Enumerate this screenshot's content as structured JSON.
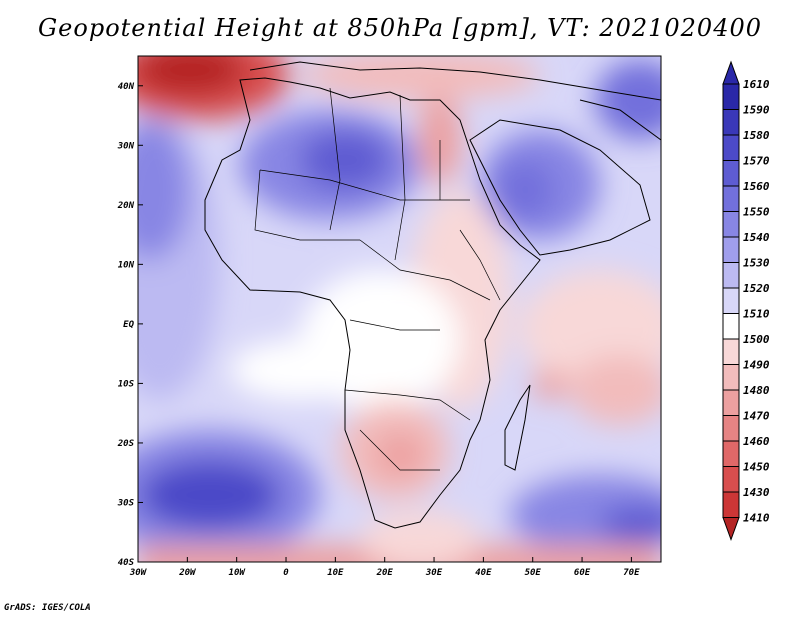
{
  "title": "Geopotential Height at 850hPa [gpm], VT: 2021020400",
  "footer": "GrADS: IGES/COLA",
  "map": {
    "variable": "Geopotential Height",
    "level": "850hPa",
    "units": "gpm",
    "valid_time": "2021020400",
    "lon_range": [
      -30,
      76
    ],
    "lat_range": [
      -40,
      45
    ],
    "lat_ticks": [
      {
        "value": 40,
        "label": "40N"
      },
      {
        "value": 30,
        "label": "30N"
      },
      {
        "value": 20,
        "label": "20N"
      },
      {
        "value": 10,
        "label": "10N"
      },
      {
        "value": 0,
        "label": "EQ"
      },
      {
        "value": -10,
        "label": "10S"
      },
      {
        "value": -20,
        "label": "20S"
      },
      {
        "value": -30,
        "label": "30S"
      },
      {
        "value": -40,
        "label": "40S"
      }
    ],
    "lon_ticks": [
      {
        "value": -30,
        "label": "30W"
      },
      {
        "value": -20,
        "label": "20W"
      },
      {
        "value": -10,
        "label": "10W"
      },
      {
        "value": 0,
        "label": "0"
      },
      {
        "value": 10,
        "label": "10E"
      },
      {
        "value": 20,
        "label": "20E"
      },
      {
        "value": 30,
        "label": "30E"
      },
      {
        "value": 40,
        "label": "40E"
      },
      {
        "value": 50,
        "label": "50E"
      },
      {
        "value": 60,
        "label": "60E"
      },
      {
        "value": 70,
        "label": "70E"
      }
    ]
  },
  "colorbar": {
    "labels_top_to_bottom": [
      "1610",
      "1590",
      "1580",
      "1570",
      "1560",
      "1550",
      "1540",
      "1530",
      "1520",
      "1510",
      "1500",
      "1490",
      "1480",
      "1470",
      "1460",
      "1450",
      "1430",
      "1410"
    ],
    "colors_top_to_bottom": [
      "#2a28a8",
      "#3a38b8",
      "#4c4ac8",
      "#5e5cd2",
      "#7270dc",
      "#8886e4",
      "#a09eec",
      "#bcbaf2",
      "#d8d7f8",
      "#ffffff",
      "#f8d8d8",
      "#f2bcbc",
      "#eca0a0",
      "#e68484",
      "#e06868",
      "#d84e4e",
      "#cc3636",
      "#b42424"
    ]
  }
}
